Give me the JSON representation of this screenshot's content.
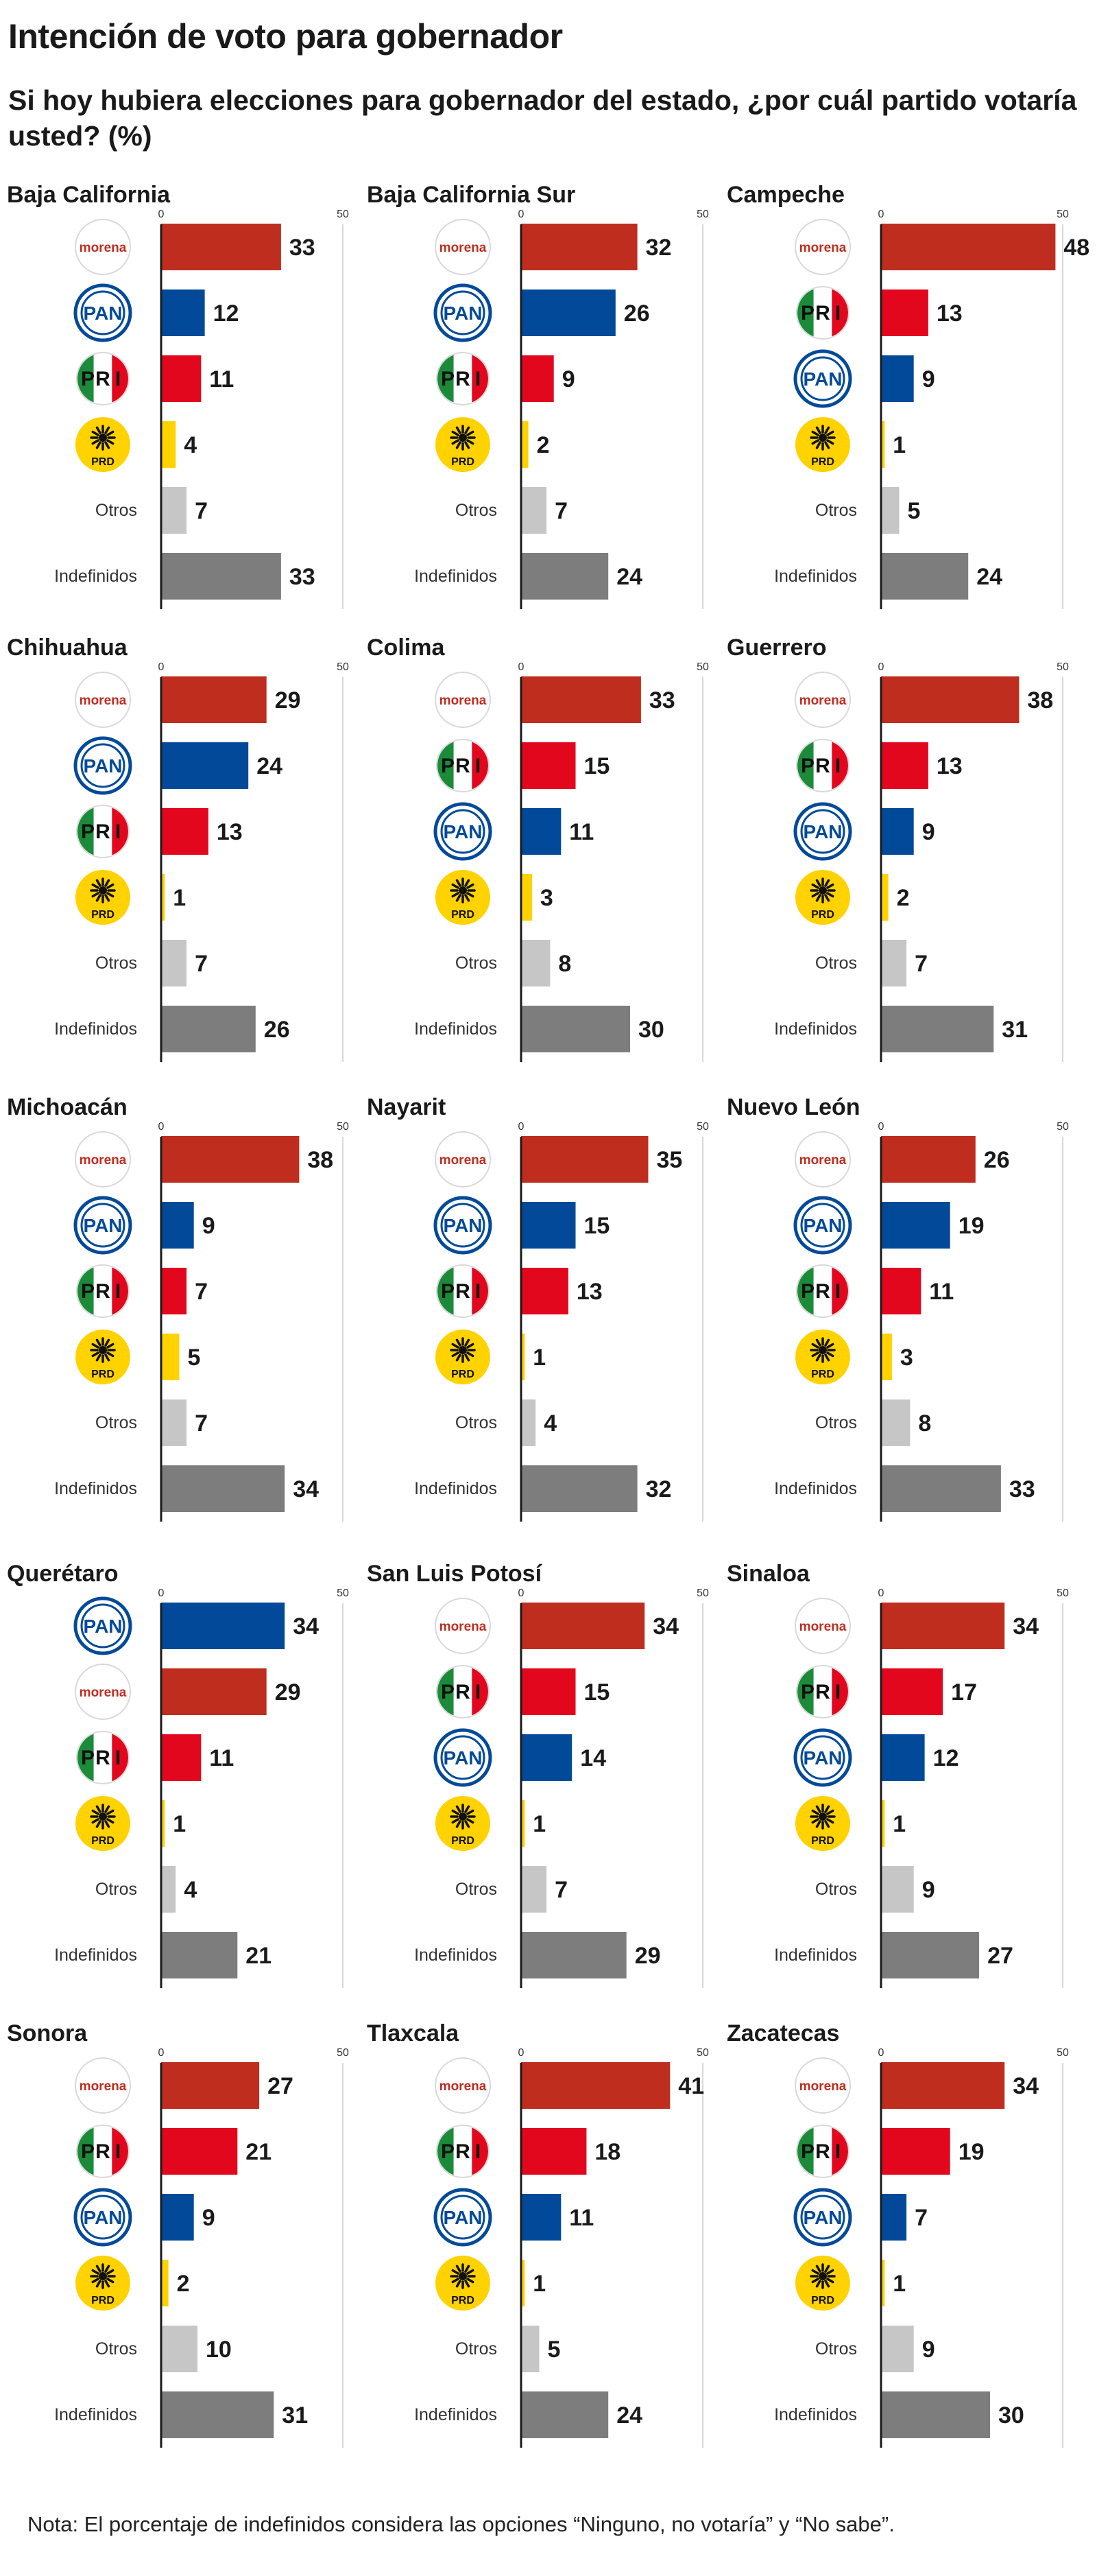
{
  "title": "Intención de voto para gobernador",
  "subtitle": "Si hoy hubiera elecciones para gobernador del estado, ¿por cuál partido votaría usted? (%)",
  "note": "Nota: El porcentaje de indefinidos considera las opciones “Ninguno, no votaría” y “No sabe”.",
  "colors": {
    "morena": "#bf2d1f",
    "pan": "#024a99",
    "pri": "#e3071d",
    "prd": "#ffd200",
    "otros": "#c6c6c6",
    "indefinidos": "#7d7d7d",
    "axis": "#1a1a1a",
    "gridline": "#cccccc"
  },
  "party_logos": {
    "morena": {
      "label": "morena",
      "icon": "morena-logo-icon"
    },
    "pan": {
      "label": "PAN",
      "icon": "pan-logo-icon"
    },
    "pri": {
      "label": "PRI",
      "icon": "pri-logo-icon"
    },
    "prd": {
      "label": "PRD",
      "icon": "prd-logo-icon"
    }
  },
  "chart_data": [
    {
      "type": "bar",
      "orientation": "horizontal",
      "title": "Baja California",
      "xlim": [
        0,
        50
      ],
      "ticks": [
        0,
        50
      ],
      "categories": [
        "morena",
        "pan",
        "pri",
        "prd",
        "Otros",
        "Indefinidos"
      ],
      "values": [
        33,
        12,
        11,
        4,
        7,
        33
      ]
    },
    {
      "type": "bar",
      "orientation": "horizontal",
      "title": "Baja California Sur",
      "xlim": [
        0,
        50
      ],
      "ticks": [
        0,
        50
      ],
      "categories": [
        "morena",
        "pan",
        "pri",
        "prd",
        "Otros",
        "Indefinidos"
      ],
      "values": [
        32,
        26,
        9,
        2,
        7,
        24
      ]
    },
    {
      "type": "bar",
      "orientation": "horizontal",
      "title": "Campeche",
      "xlim": [
        0,
        50
      ],
      "ticks": [
        0,
        50
      ],
      "categories": [
        "morena",
        "pri",
        "pan",
        "prd",
        "Otros",
        "Indefinidos"
      ],
      "values": [
        48,
        13,
        9,
        1,
        5,
        24
      ]
    },
    {
      "type": "bar",
      "orientation": "horizontal",
      "title": "Chihuahua",
      "xlim": [
        0,
        50
      ],
      "ticks": [
        0,
        50
      ],
      "categories": [
        "morena",
        "pan",
        "pri",
        "prd",
        "Otros",
        "Indefinidos"
      ],
      "values": [
        29,
        24,
        13,
        1,
        7,
        26
      ]
    },
    {
      "type": "bar",
      "orientation": "horizontal",
      "title": "Colima",
      "xlim": [
        0,
        50
      ],
      "ticks": [
        0,
        50
      ],
      "categories": [
        "morena",
        "pri",
        "pan",
        "prd",
        "Otros",
        "Indefinidos"
      ],
      "values": [
        33,
        15,
        11,
        3,
        8,
        30
      ]
    },
    {
      "type": "bar",
      "orientation": "horizontal",
      "title": "Guerrero",
      "xlim": [
        0,
        50
      ],
      "ticks": [
        0,
        50
      ],
      "categories": [
        "morena",
        "pri",
        "pan",
        "prd",
        "Otros",
        "Indefinidos"
      ],
      "values": [
        38,
        13,
        9,
        2,
        7,
        31
      ]
    },
    {
      "type": "bar",
      "orientation": "horizontal",
      "title": "Michoacán",
      "xlim": [
        0,
        50
      ],
      "ticks": [
        0,
        50
      ],
      "categories": [
        "morena",
        "pan",
        "pri",
        "prd",
        "Otros",
        "Indefinidos"
      ],
      "values": [
        38,
        9,
        7,
        5,
        7,
        34
      ]
    },
    {
      "type": "bar",
      "orientation": "horizontal",
      "title": "Nayarit",
      "xlim": [
        0,
        50
      ],
      "ticks": [
        0,
        50
      ],
      "categories": [
        "morena",
        "pan",
        "pri",
        "prd",
        "Otros",
        "Indefinidos"
      ],
      "values": [
        35,
        15,
        13,
        1,
        4,
        32
      ]
    },
    {
      "type": "bar",
      "orientation": "horizontal",
      "title": "Nuevo León",
      "xlim": [
        0,
        50
      ],
      "ticks": [
        0,
        50
      ],
      "categories": [
        "morena",
        "pan",
        "pri",
        "prd",
        "Otros",
        "Indefinidos"
      ],
      "values": [
        26,
        19,
        11,
        3,
        8,
        33
      ]
    },
    {
      "type": "bar",
      "orientation": "horizontal",
      "title": "Querétaro",
      "xlim": [
        0,
        50
      ],
      "ticks": [
        0,
        50
      ],
      "categories": [
        "pan",
        "morena",
        "pri",
        "prd",
        "Otros",
        "Indefinidos"
      ],
      "values": [
        34,
        29,
        11,
        1,
        4,
        21
      ]
    },
    {
      "type": "bar",
      "orientation": "horizontal",
      "title": "San Luis Potosí",
      "xlim": [
        0,
        50
      ],
      "ticks": [
        0,
        50
      ],
      "categories": [
        "morena",
        "pri",
        "pan",
        "prd",
        "Otros",
        "Indefinidos"
      ],
      "values": [
        34,
        15,
        14,
        1,
        7,
        29
      ]
    },
    {
      "type": "bar",
      "orientation": "horizontal",
      "title": "Sinaloa",
      "xlim": [
        0,
        50
      ],
      "ticks": [
        0,
        50
      ],
      "categories": [
        "morena",
        "pri",
        "pan",
        "prd",
        "Otros",
        "Indefinidos"
      ],
      "values": [
        34,
        17,
        12,
        1,
        9,
        27
      ]
    },
    {
      "type": "bar",
      "orientation": "horizontal",
      "title": "Sonora",
      "xlim": [
        0,
        50
      ],
      "ticks": [
        0,
        50
      ],
      "categories": [
        "morena",
        "pri",
        "pan",
        "prd",
        "Otros",
        "Indefinidos"
      ],
      "values": [
        27,
        21,
        9,
        2,
        10,
        31
      ]
    },
    {
      "type": "bar",
      "orientation": "horizontal",
      "title": "Tlaxcala",
      "xlim": [
        0,
        50
      ],
      "ticks": [
        0,
        50
      ],
      "categories": [
        "morena",
        "pri",
        "pan",
        "prd",
        "Otros",
        "Indefinidos"
      ],
      "values": [
        41,
        18,
        11,
        1,
        5,
        24
      ]
    },
    {
      "type": "bar",
      "orientation": "horizontal",
      "title": "Zacatecas",
      "xlim": [
        0,
        50
      ],
      "ticks": [
        0,
        50
      ],
      "categories": [
        "morena",
        "pri",
        "pan",
        "prd",
        "Otros",
        "Indefinidos"
      ],
      "values": [
        34,
        19,
        7,
        1,
        9,
        30
      ]
    }
  ]
}
